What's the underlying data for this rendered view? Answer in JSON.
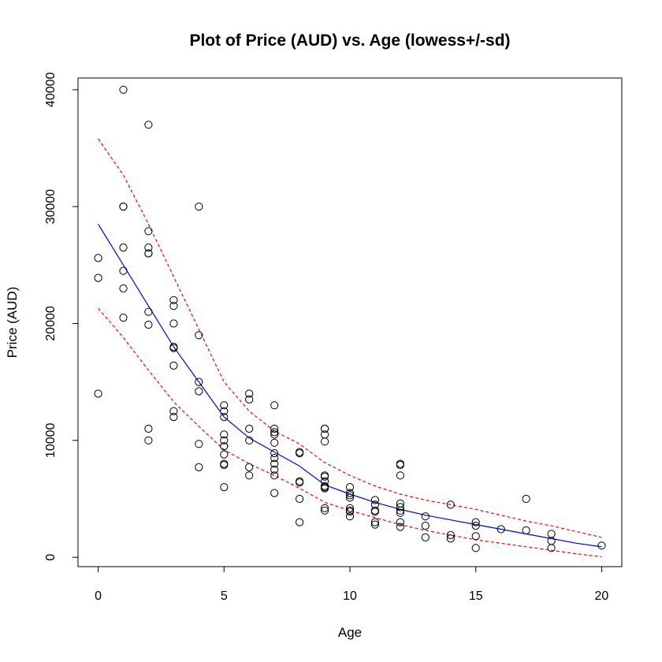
{
  "chart_data": {
    "type": "scatter",
    "title": "Plot of Price (AUD) vs. Age   (lowess+/-sd)",
    "xlabel": "Age",
    "ylabel": "Price (AUD)",
    "xlim": [
      -0.8,
      20.8
    ],
    "ylim": [
      -800,
      41000
    ],
    "xticks": [
      0,
      5,
      10,
      15,
      20
    ],
    "yticks": [
      0,
      10000,
      20000,
      30000,
      40000
    ],
    "grid": false,
    "legend": "none",
    "points": [
      [
        0,
        25600
      ],
      [
        0,
        23900
      ],
      [
        0,
        14000
      ],
      [
        1,
        40000
      ],
      [
        1,
        30000
      ],
      [
        1,
        30000
      ],
      [
        1,
        26500
      ],
      [
        1,
        24500
      ],
      [
        1,
        23000
      ],
      [
        1,
        20500
      ],
      [
        2,
        37000
      ],
      [
        2,
        27900
      ],
      [
        2,
        26500
      ],
      [
        2,
        26000
      ],
      [
        2,
        26000
      ],
      [
        2,
        21000
      ],
      [
        2,
        19900
      ],
      [
        2,
        11000
      ],
      [
        2,
        10000
      ],
      [
        3,
        22000
      ],
      [
        3,
        21500
      ],
      [
        3,
        20000
      ],
      [
        3,
        18000
      ],
      [
        3,
        17900
      ],
      [
        3,
        16400
      ],
      [
        3,
        12500
      ],
      [
        3,
        12000
      ],
      [
        4,
        30000
      ],
      [
        4,
        19000
      ],
      [
        4,
        15000
      ],
      [
        4,
        14200
      ],
      [
        4,
        9700
      ],
      [
        4,
        7700
      ],
      [
        5,
        13000
      ],
      [
        5,
        12500
      ],
      [
        5,
        12000
      ],
      [
        5,
        10500
      ],
      [
        5,
        10000
      ],
      [
        5,
        9500
      ],
      [
        5,
        9500
      ],
      [
        5,
        8800
      ],
      [
        5,
        8000
      ],
      [
        5,
        7900
      ],
      [
        5,
        6000
      ],
      [
        6,
        14000
      ],
      [
        6,
        13500
      ],
      [
        6,
        11000
      ],
      [
        6,
        10000
      ],
      [
        6,
        7700
      ],
      [
        6,
        7000
      ],
      [
        7,
        13000
      ],
      [
        7,
        11000
      ],
      [
        7,
        10700
      ],
      [
        7,
        10500
      ],
      [
        7,
        9800
      ],
      [
        7,
        8900
      ],
      [
        7,
        8500
      ],
      [
        7,
        8000
      ],
      [
        7,
        7500
      ],
      [
        7,
        7000
      ],
      [
        7,
        5500
      ],
      [
        8,
        9000
      ],
      [
        8,
        8900
      ],
      [
        8,
        6500
      ],
      [
        8,
        6400
      ],
      [
        8,
        5000
      ],
      [
        8,
        3000
      ],
      [
        9,
        11000
      ],
      [
        9,
        11000
      ],
      [
        9,
        10500
      ],
      [
        9,
        9900
      ],
      [
        9,
        7000
      ],
      [
        9,
        6900
      ],
      [
        9,
        6500
      ],
      [
        9,
        6100
      ],
      [
        9,
        6000
      ],
      [
        9,
        5900
      ],
      [
        9,
        4200
      ],
      [
        9,
        4000
      ],
      [
        10,
        6000
      ],
      [
        10,
        5500
      ],
      [
        10,
        5300
      ],
      [
        10,
        5100
      ],
      [
        10,
        4200
      ],
      [
        10,
        4000
      ],
      [
        10,
        3900
      ],
      [
        10,
        3500
      ],
      [
        11,
        4900
      ],
      [
        11,
        4500
      ],
      [
        11,
        4000
      ],
      [
        11,
        3900
      ],
      [
        11,
        3000
      ],
      [
        11,
        2800
      ],
      [
        12,
        8000
      ],
      [
        12,
        7900
      ],
      [
        12,
        7000
      ],
      [
        12,
        4600
      ],
      [
        12,
        4300
      ],
      [
        12,
        4000
      ],
      [
        12,
        3800
      ],
      [
        12,
        3000
      ],
      [
        12,
        2600
      ],
      [
        13,
        3500
      ],
      [
        13,
        2700
      ],
      [
        13,
        1700
      ],
      [
        14,
        4500
      ],
      [
        14,
        1900
      ],
      [
        14,
        1600
      ],
      [
        15,
        3000
      ],
      [
        15,
        2700
      ],
      [
        15,
        1800
      ],
      [
        15,
        800
      ],
      [
        16,
        2400
      ],
      [
        17,
        5000
      ],
      [
        17,
        2300
      ],
      [
        18,
        2000
      ],
      [
        18,
        1400
      ],
      [
        18,
        800
      ],
      [
        20,
        1000
      ]
    ],
    "series": [
      {
        "style": "solid",
        "color": "#0000ff",
        "x": [
          0,
          1,
          2,
          3,
          4,
          5,
          6,
          7,
          8,
          9,
          10,
          11,
          12,
          13,
          14,
          15,
          16,
          17,
          18,
          19,
          20
        ],
        "y": [
          28500,
          25000,
          21500,
          18000,
          15000,
          12000,
          10200,
          9000,
          7800,
          6200,
          5400,
          4700,
          4100,
          3600,
          3200,
          2800,
          2400,
          2000,
          1600,
          1200,
          900
        ]
      },
      {
        "style": "dashed",
        "color": "#ff0000",
        "x": [
          0,
          1,
          2,
          3,
          4,
          5,
          6,
          7,
          8,
          9,
          10,
          11,
          12,
          13,
          14,
          15,
          16,
          17,
          18,
          19,
          20
        ],
        "y": [
          35800,
          32700,
          28500,
          24000,
          19500,
          15000,
          12500,
          10800,
          9700,
          8100,
          7000,
          6100,
          5400,
          4900,
          4500,
          4100,
          3600,
          3100,
          2700,
          2200,
          1700
        ]
      },
      {
        "style": "dashed",
        "color": "#ff0000",
        "x": [
          0,
          1,
          2,
          3,
          4,
          5,
          6,
          7,
          8,
          9,
          10,
          11,
          12,
          13,
          14,
          15,
          16,
          17,
          18,
          19,
          20
        ],
        "y": [
          21300,
          18800,
          16000,
          13300,
          11200,
          9200,
          8000,
          7000,
          5900,
          4700,
          4000,
          3400,
          2800,
          2300,
          1900,
          1500,
          1200,
          900,
          600,
          300,
          50
        ]
      }
    ]
  }
}
